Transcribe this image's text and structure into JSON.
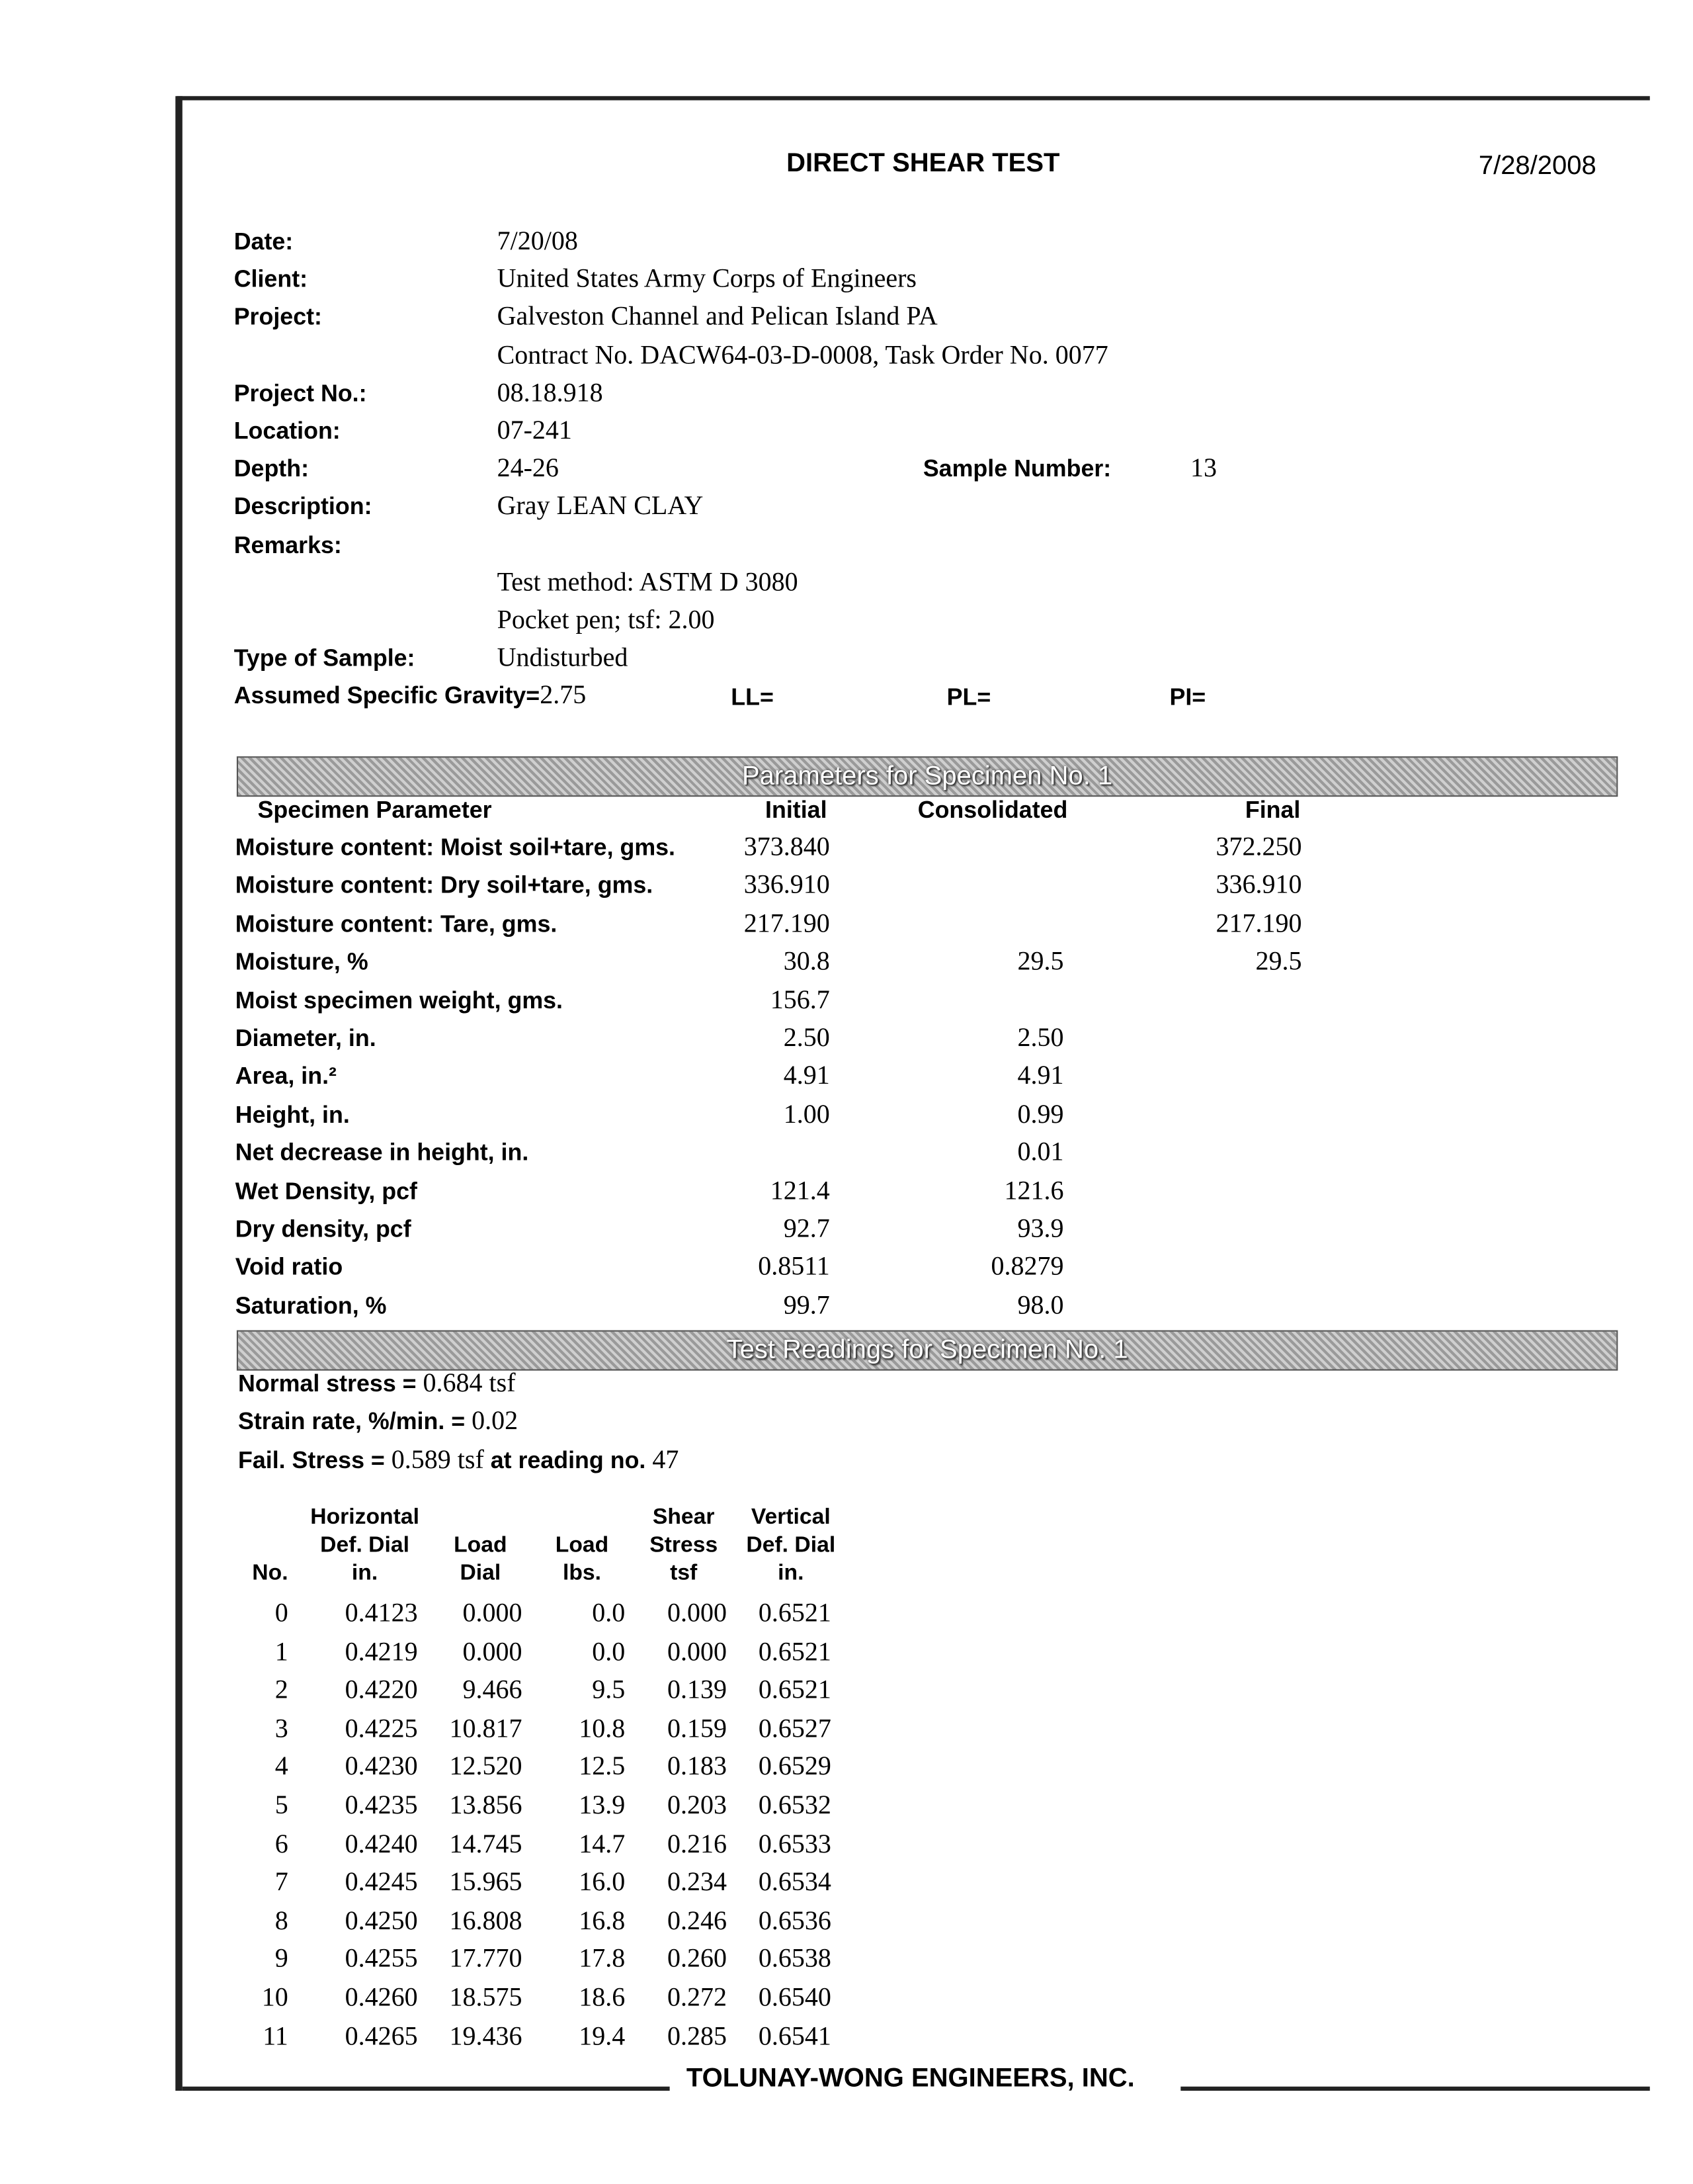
{
  "header": {
    "title": "DIRECT SHEAR TEST",
    "print_date": "7/28/2008"
  },
  "info": [
    {
      "label": "Date:",
      "value": "7/20/08"
    },
    {
      "label": "Client:",
      "value": "United States Army Corps of Engineers"
    },
    {
      "label": "Project:",
      "value": "Galveston Channel and Pelican Island PA"
    },
    {
      "label": "",
      "value": "Contract No. DACW64-03-D-0008, Task Order No. 0077"
    },
    {
      "label": "Project No.:",
      "value": "08.18.918"
    },
    {
      "label": "Location:",
      "value": "07-241"
    },
    {
      "label": "Depth:",
      "value": "24-26"
    },
    {
      "label": "Description:",
      "value": "Gray LEAN CLAY"
    },
    {
      "label": "Remarks:",
      "value": ""
    },
    {
      "label": "",
      "value": "Test method: ASTM D 3080"
    },
    {
      "label": "",
      "value": "Pocket pen; tsf: 2.00"
    },
    {
      "label": "Type of Sample:",
      "value": "Undisturbed"
    }
  ],
  "sample_number": {
    "label": "Sample Number:",
    "value": "13"
  },
  "gravity": {
    "label": "Assumed Specific Gravity=",
    "value": "2.75",
    "ll": "LL=",
    "pl": "PL=",
    "pi": "PI="
  },
  "params": {
    "banner": "Parameters for Specimen No. 1",
    "headers": [
      "Specimen Parameter",
      "Initial",
      "Consolidated",
      "Final"
    ],
    "rows": [
      [
        "Moisture content: Moist soil+tare, gms.",
        "373.840",
        "",
        "372.250"
      ],
      [
        "Moisture content: Dry soil+tare, gms.",
        "336.910",
        "",
        "336.910"
      ],
      [
        "Moisture content: Tare, gms.",
        "217.190",
        "",
        "217.190"
      ],
      [
        "Moisture, %",
        "30.8",
        "29.5",
        "29.5"
      ],
      [
        "Moist specimen weight, gms.",
        "156.7",
        "",
        ""
      ],
      [
        "Diameter, in.",
        "2.50",
        "2.50",
        ""
      ],
      [
        "Area, in.²",
        "4.91",
        "4.91",
        ""
      ],
      [
        "Height, in.",
        "1.00",
        "0.99",
        ""
      ],
      [
        "Net decrease in height, in.",
        "",
        "0.01",
        ""
      ],
      [
        "Wet Density, pcf",
        "121.4",
        "121.6",
        ""
      ],
      [
        "Dry density, pcf",
        "92.7",
        "93.9",
        ""
      ],
      [
        "Void ratio",
        "0.8511",
        "0.8279",
        ""
      ],
      [
        "Saturation, %",
        "99.7",
        "98.0",
        ""
      ]
    ]
  },
  "readings": {
    "banner": "Test Readings for Specimen No. 1",
    "normal_stress_label": "Normal stress = ",
    "normal_stress": "0.684 tsf",
    "strain_rate_label": "Strain rate, %/min. = ",
    "strain_rate": "0.02",
    "fail_label": "Fail. Stress = ",
    "fail_value": "0.589 tsf",
    "fail_mid": " at reading no. ",
    "fail_reading": "47",
    "headers": [
      [
        "",
        "",
        "No."
      ],
      [
        "Horizontal",
        "Def. Dial",
        "in."
      ],
      [
        "",
        "Load",
        "Dial"
      ],
      [
        "",
        "Load",
        "lbs."
      ],
      [
        "Shear",
        "Stress",
        "tsf"
      ],
      [
        "Vertical",
        "Def. Dial",
        "in."
      ]
    ],
    "rows": [
      [
        "0",
        "0.4123",
        "0.000",
        "0.0",
        "0.000",
        "0.6521"
      ],
      [
        "1",
        "0.4219",
        "0.000",
        "0.0",
        "0.000",
        "0.6521"
      ],
      [
        "2",
        "0.4220",
        "9.466",
        "9.5",
        "0.139",
        "0.6521"
      ],
      [
        "3",
        "0.4225",
        "10.817",
        "10.8",
        "0.159",
        "0.6527"
      ],
      [
        "4",
        "0.4230",
        "12.520",
        "12.5",
        "0.183",
        "0.6529"
      ],
      [
        "5",
        "0.4235",
        "13.856",
        "13.9",
        "0.203",
        "0.6532"
      ],
      [
        "6",
        "0.4240",
        "14.745",
        "14.7",
        "0.216",
        "0.6533"
      ],
      [
        "7",
        "0.4245",
        "15.965",
        "16.0",
        "0.234",
        "0.6534"
      ],
      [
        "8",
        "0.4250",
        "16.808",
        "16.8",
        "0.246",
        "0.6536"
      ],
      [
        "9",
        "0.4255",
        "17.770",
        "17.8",
        "0.260",
        "0.6538"
      ],
      [
        "10",
        "0.4260",
        "18.575",
        "18.6",
        "0.272",
        "0.6540"
      ],
      [
        "11",
        "0.4265",
        "19.436",
        "19.4",
        "0.285",
        "0.6541"
      ]
    ]
  },
  "footer": {
    "company": "TOLUNAY-WONG ENGINEERS, INC."
  }
}
